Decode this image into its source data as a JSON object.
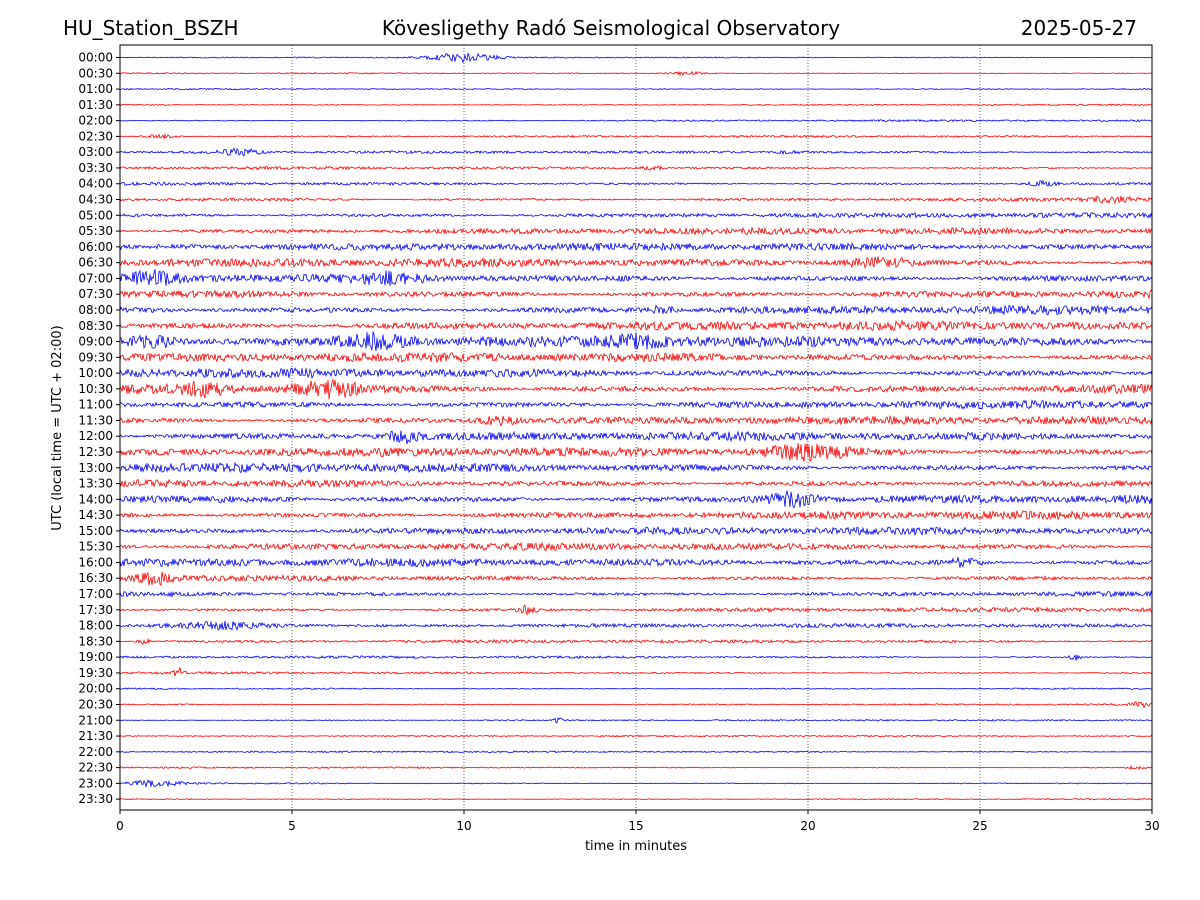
{
  "chart_data": {
    "type": "line",
    "station": "HU_Station_BSZH",
    "title": "Kövesligethy Radó Seismological Observatory",
    "date": "2025-05-27",
    "xlabel": "time in minutes",
    "ylabel": "UTC (local time = UTC + 02:00)",
    "xlim": [
      0,
      30
    ],
    "x_ticks": [
      0,
      5,
      10,
      15,
      20,
      25,
      30
    ],
    "x_grid": true,
    "colors": [
      "#0000ff",
      "#ff0000"
    ],
    "trace_labels": [
      "00:00",
      "00:30",
      "01:00",
      "01:30",
      "02:00",
      "02:30",
      "03:00",
      "03:30",
      "04:00",
      "04:30",
      "05:00",
      "05:30",
      "06:00",
      "06:30",
      "07:00",
      "07:30",
      "08:00",
      "08:30",
      "09:00",
      "09:30",
      "10:00",
      "10:30",
      "11:00",
      "11:30",
      "12:00",
      "12:30",
      "13:00",
      "13:30",
      "14:00",
      "14:30",
      "15:00",
      "15:30",
      "16:00",
      "16:30",
      "17:00",
      "17:30",
      "18:00",
      "18:30",
      "19:00",
      "19:30",
      "20:00",
      "20:30",
      "21:00",
      "21:30",
      "22:00",
      "22:30",
      "23:00",
      "23:30"
    ],
    "noise_level": [
      0.5,
      0.5,
      0.6,
      0.6,
      0.7,
      0.8,
      1.0,
      1.1,
      1.3,
      1.6,
      2.0,
      2.6,
      3.0,
      3.3,
      3.5,
      3.4,
      3.6,
      3.7,
      4.2,
      3.6,
      3.8,
      3.9,
      3.5,
      3.3,
      3.4,
      3.5,
      3.6,
      3.3,
      3.6,
      3.2,
      3.0,
      2.8,
      3.2,
      2.4,
      2.1,
      1.8,
      1.6,
      1.2,
      1.0,
      0.9,
      0.7,
      0.7,
      0.6,
      0.6,
      0.6,
      0.6,
      0.6,
      0.5
    ],
    "events": [
      {
        "trace": 0,
        "minute": 10.0,
        "width": 0.9,
        "amp": 4.5
      },
      {
        "trace": 1,
        "minute": 16.5,
        "width": 0.6,
        "amp": 1.5
      },
      {
        "trace": 5,
        "minute": 1.2,
        "width": 0.5,
        "amp": 1.8
      },
      {
        "trace": 6,
        "minute": 3.5,
        "width": 0.6,
        "amp": 3.5
      },
      {
        "trace": 6,
        "minute": 19.5,
        "width": 0.4,
        "amp": 1.5
      },
      {
        "trace": 7,
        "minute": 15.5,
        "width": 0.3,
        "amp": 2.0
      },
      {
        "trace": 8,
        "minute": 26.8,
        "width": 0.4,
        "amp": 2.5
      },
      {
        "trace": 9,
        "minute": 28.8,
        "width": 0.6,
        "amp": 3.0
      },
      {
        "trace": 13,
        "minute": 22.0,
        "width": 1.0,
        "amp": 5.0
      },
      {
        "trace": 14,
        "minute": 1.0,
        "width": 0.6,
        "amp": 5.0
      },
      {
        "trace": 14,
        "minute": 7.8,
        "width": 0.8,
        "amp": 5.0
      },
      {
        "trace": 16,
        "minute": 15.8,
        "width": 0.3,
        "amp": 4.5
      },
      {
        "trace": 18,
        "minute": 1.0,
        "width": 0.8,
        "amp": 5.5
      },
      {
        "trace": 18,
        "minute": 7.5,
        "width": 1.0,
        "amp": 6.0
      },
      {
        "trace": 18,
        "minute": 15.0,
        "width": 0.8,
        "amp": 5.0
      },
      {
        "trace": 21,
        "minute": 6.0,
        "width": 1.0,
        "amp": 7.0
      },
      {
        "trace": 21,
        "minute": 2.5,
        "width": 0.6,
        "amp": 5.0
      },
      {
        "trace": 23,
        "minute": 11.0,
        "width": 0.6,
        "amp": 4.0
      },
      {
        "trace": 24,
        "minute": 8.3,
        "width": 0.5,
        "amp": 5.0
      },
      {
        "trace": 25,
        "minute": 20.0,
        "width": 1.2,
        "amp": 6.0
      },
      {
        "trace": 28,
        "minute": 19.5,
        "width": 0.8,
        "amp": 7.0
      },
      {
        "trace": 32,
        "minute": 24.5,
        "width": 0.6,
        "amp": 4.0
      },
      {
        "trace": 33,
        "minute": 1.0,
        "width": 0.5,
        "amp": 5.5
      },
      {
        "trace": 35,
        "minute": 11.8,
        "width": 0.3,
        "amp": 3.5
      },
      {
        "trace": 36,
        "minute": 3.0,
        "width": 1.5,
        "amp": 4.0
      },
      {
        "trace": 37,
        "minute": 0.7,
        "width": 0.2,
        "amp": 2.5
      },
      {
        "trace": 38,
        "minute": 27.8,
        "width": 0.2,
        "amp": 3.0
      },
      {
        "trace": 39,
        "minute": 1.7,
        "width": 0.15,
        "amp": 5.0
      },
      {
        "trace": 41,
        "minute": 29.6,
        "width": 0.3,
        "amp": 3.0
      },
      {
        "trace": 42,
        "minute": 12.7,
        "width": 0.15,
        "amp": 3.0
      },
      {
        "trace": 45,
        "minute": 29.5,
        "width": 0.3,
        "amp": 1.5
      },
      {
        "trace": 46,
        "minute": 1.0,
        "width": 0.8,
        "amp": 3.0
      }
    ]
  }
}
